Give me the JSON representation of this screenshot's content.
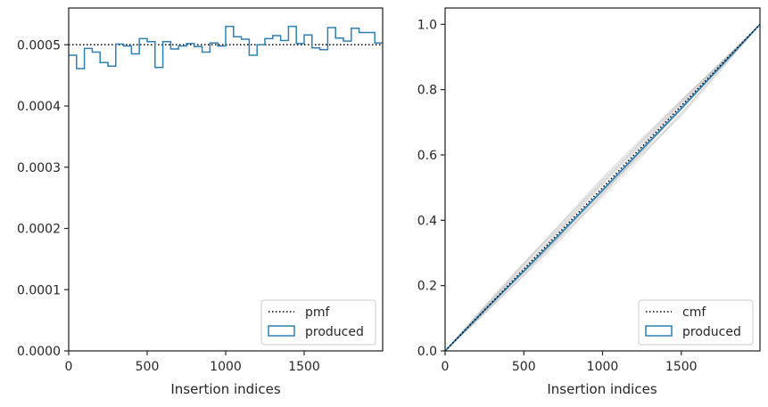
{
  "chart_data": [
    {
      "type": "step",
      "xlabel": "Insertion indices",
      "xlim": [
        0,
        2000
      ],
      "ylim": [
        0,
        0.00056
      ],
      "xticks": [
        0,
        500,
        1000,
        1500
      ],
      "xtick_labels": [
        "0",
        "500",
        "1000",
        "1500"
      ],
      "yticks": [
        0,
        0.0001,
        0.0002,
        0.0003,
        0.0004,
        0.0005
      ],
      "ytick_labels": [
        "0.0000",
        "0.0001",
        "0.0002",
        "0.0003",
        "0.0004",
        "0.0005"
      ],
      "legend": {
        "placement": "lower-right",
        "entries": [
          "pmf",
          "produced"
        ]
      },
      "pmf_value": 0.0005,
      "bin_width": 50,
      "bins_start": 0,
      "produced_values": [
        0.000483,
        0.000461,
        0.000494,
        0.000488,
        0.000471,
        0.000465,
        0.000501,
        0.000498,
        0.000485,
        0.00051,
        0.000505,
        0.000463,
        0.000505,
        0.000493,
        0.000498,
        0.000502,
        0.000497,
        0.000488,
        0.000503,
        0.000498,
        0.00053,
        0.000513,
        0.000509,
        0.000483,
        0.0005,
        0.00051,
        0.000515,
        0.000507,
        0.00053,
        0.000502,
        0.000516,
        0.000495,
        0.000492,
        0.000528,
        0.000511,
        0.000506,
        0.000527,
        0.00052,
        0.00052,
        0.000503
      ],
      "colors": {
        "produced": "#2f7fb3",
        "pmf": "#000000"
      }
    },
    {
      "type": "line",
      "xlabel": "Insertion indices",
      "xlim": [
        0,
        2000
      ],
      "ylim": [
        0,
        1.05
      ],
      "xticks": [
        0,
        500,
        1000,
        1500
      ],
      "xtick_labels": [
        "0",
        "500",
        "1000",
        "1500"
      ],
      "yticks": [
        0,
        0.2,
        0.4,
        0.6,
        0.8,
        1.0
      ],
      "ytick_labels": [
        "0.0",
        "0.2",
        "0.4",
        "0.6",
        "0.8",
        "1.0"
      ],
      "legend": {
        "placement": "lower-right",
        "entries": [
          "cmf",
          "produced"
        ]
      },
      "cmf_line": [
        [
          0,
          0
        ],
        [
          2000,
          1
        ]
      ],
      "produced_line": [
        [
          0,
          0
        ],
        [
          250,
          0.124
        ],
        [
          500,
          0.244
        ],
        [
          750,
          0.368
        ],
        [
          1000,
          0.492
        ],
        [
          1250,
          0.617
        ],
        [
          1500,
          0.742
        ],
        [
          1750,
          0.871
        ],
        [
          2000,
          1
        ]
      ],
      "simulation_deviations": [
        [
          0,
          0.01,
          0.018,
          0.012,
          0.02,
          0.015,
          0.01,
          0.005,
          0
        ],
        [
          0,
          -0.008,
          -0.015,
          -0.02,
          -0.018,
          -0.012,
          -0.008,
          -0.004,
          0
        ],
        [
          0,
          0.005,
          0.012,
          0.018,
          0.025,
          0.02,
          0.014,
          0.006,
          0
        ],
        [
          0,
          -0.004,
          -0.01,
          -0.018,
          -0.028,
          -0.03,
          -0.022,
          -0.01,
          0
        ],
        [
          0,
          0.012,
          0.02,
          0.022,
          0.016,
          0.01,
          0.008,
          0.004,
          0
        ],
        [
          0,
          -0.01,
          -0.02,
          -0.026,
          -0.022,
          -0.016,
          -0.01,
          -0.005,
          0
        ],
        [
          0,
          0.003,
          0.006,
          0.01,
          0.014,
          0.018,
          0.016,
          0.008,
          0
        ],
        [
          0,
          -0.006,
          -0.004,
          -0.008,
          -0.012,
          -0.02,
          -0.024,
          -0.012,
          0
        ],
        [
          0,
          0.008,
          0.004,
          0.006,
          0.01,
          0.006,
          0.004,
          0.002,
          0
        ],
        [
          0,
          -0.012,
          -0.018,
          -0.012,
          -0.006,
          -0.004,
          -0.002,
          -0.001,
          0
        ],
        [
          0,
          0.006,
          0.014,
          0.024,
          0.03,
          0.026,
          0.018,
          0.008,
          0
        ],
        [
          0,
          -0.002,
          -0.008,
          -0.014,
          -0.016,
          -0.024,
          -0.03,
          -0.016,
          0
        ]
      ],
      "colors": {
        "produced": "#2f7fb3",
        "cmf": "#000000",
        "simulations": "#bfbfbf"
      }
    }
  ]
}
